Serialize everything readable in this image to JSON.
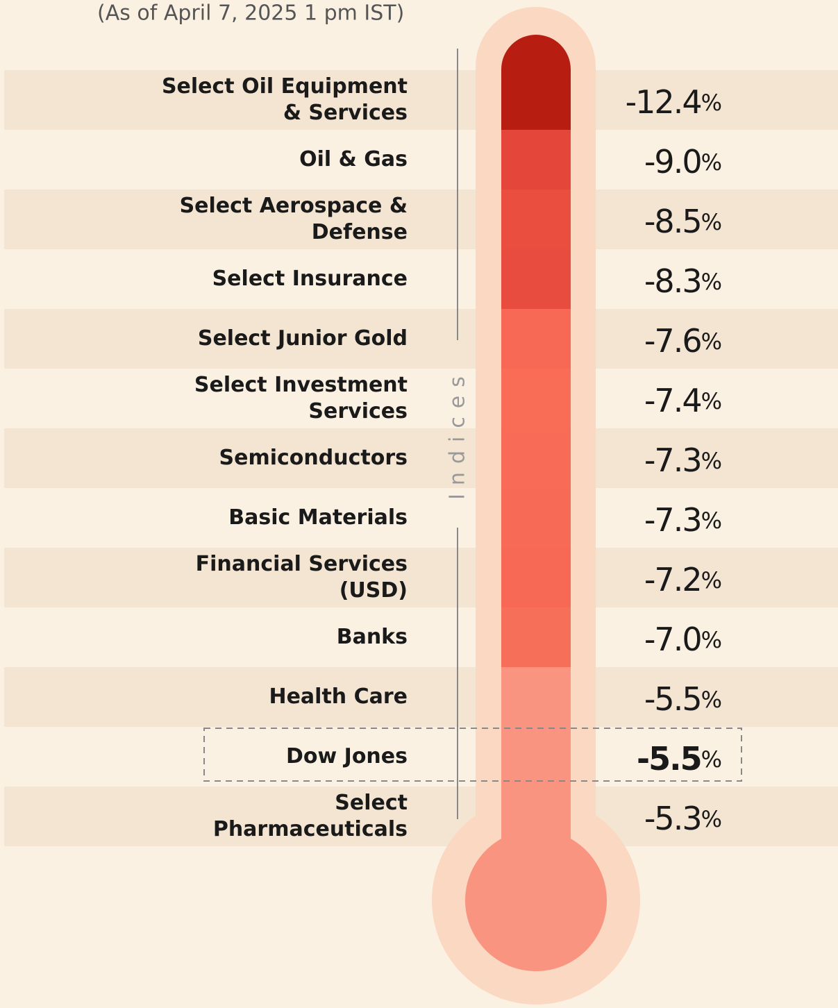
{
  "chart_data": {
    "type": "thermometer",
    "subtitle": "(As of April 7, 2025 1 pm IST)",
    "axis_label": "Indices",
    "categories": [
      "Select Oil Equipment\n& Services",
      "Oil & Gas",
      "Select Aerospace &\nDefense",
      "Select Insurance",
      "Select Junior Gold",
      "Select Investment\nServices",
      "Semiconductors",
      "Basic Materials",
      "Financial Services\n(USD)",
      "Banks",
      "Health Care",
      "Dow Jones",
      "Select\nPharmaceuticals"
    ],
    "values": [
      -12.4,
      -9.0,
      -8.5,
      -8.3,
      -7.6,
      -7.4,
      -7.3,
      -7.3,
      -7.2,
      -7.0,
      -5.5,
      -5.5,
      -5.3
    ],
    "value_labels": [
      "-12.4%",
      "-9.0%",
      "-8.5%",
      "-8.3%",
      "-7.6%",
      "-7.4%",
      "-7.3%",
      "-7.3%",
      "-7.2%",
      "-7.0%",
      "-5.5%",
      "-5.5%",
      "-5.3%"
    ],
    "colors": [
      "#b71d11",
      "#e4473a",
      "#e94e3f",
      "#e84c3e",
      "#f76954",
      "#f96d57",
      "#f86b56",
      "#f76a55",
      "#f76954",
      "#f67059",
      "#f99480",
      "#f99480",
      "#f99480"
    ],
    "highlight": "Dow Jones"
  }
}
